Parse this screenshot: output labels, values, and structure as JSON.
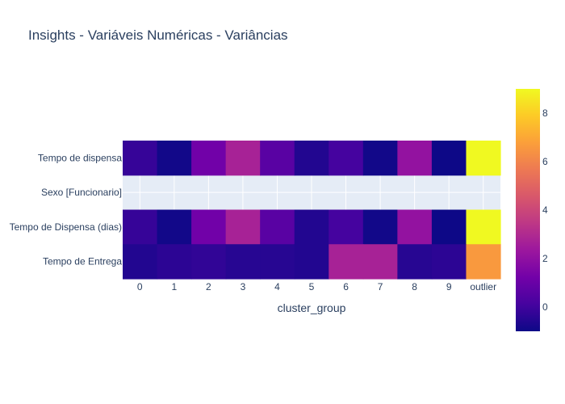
{
  "chart_data": {
    "type": "heatmap",
    "title": "Insights - Variáveis Numéricas - Variâncias",
    "xlabel": "cluster_group",
    "ylabel": "",
    "x": [
      "0",
      "1",
      "2",
      "3",
      "4",
      "5",
      "6",
      "7",
      "8",
      "9",
      "outlier"
    ],
    "y": [
      "Tempo de dispensa",
      "Sexo [Funcionario]",
      "Tempo de Dispensa (dias)",
      "Tempo de Entrega"
    ],
    "z": [
      [
        -0.2,
        -0.9,
        1.2,
        2.7,
        0.6,
        -0.6,
        0.1,
        -0.9,
        2.1,
        -1.0,
        9.0
      ],
      [
        null,
        null,
        null,
        null,
        null,
        null,
        null,
        null,
        null,
        null,
        null
      ],
      [
        -0.2,
        -0.9,
        1.2,
        2.7,
        0.6,
        -0.6,
        0.1,
        -0.9,
        2.1,
        -1.0,
        9.0
      ],
      [
        -0.6,
        -0.4,
        -0.3,
        -0.5,
        -0.5,
        -0.6,
        2.7,
        2.7,
        -0.5,
        -0.4,
        6.6
      ]
    ],
    "colorscale": [
      "#0d0887",
      "#46039f",
      "#7201a8",
      "#9c179e",
      "#bd3786",
      "#d8576b",
      "#ed7953",
      "#fb9f3a",
      "#fdca26",
      "#f0f921"
    ],
    "zlim": [
      -1.0,
      9.0
    ],
    "colorbar_ticks": [
      "0",
      "2",
      "4",
      "6",
      "8"
    ],
    "colorbar_tick_values": [
      0,
      2,
      4,
      6,
      8
    ],
    "background_color": "#e5ecf6"
  }
}
